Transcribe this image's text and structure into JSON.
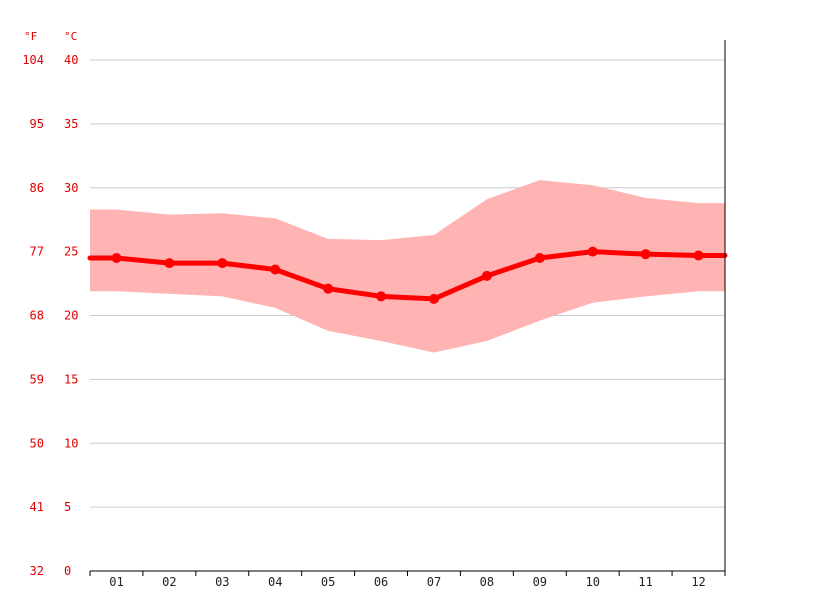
{
  "chart_data": {
    "type": "line",
    "title": "",
    "unit_left": "°F",
    "unit_right": "°C",
    "categories": [
      "01",
      "02",
      "03",
      "04",
      "05",
      "06",
      "07",
      "08",
      "09",
      "10",
      "11",
      "12"
    ],
    "y_ticks_c": [
      "0",
      "5",
      "10",
      "15",
      "20",
      "25",
      "30",
      "35",
      "40"
    ],
    "y_ticks_f": [
      "32",
      "41",
      "50",
      "59",
      "68",
      "77",
      "86",
      "95",
      "104"
    ],
    "ylim": [
      0,
      40
    ],
    "grid": true,
    "series": [
      {
        "role": "mean",
        "values": [
          24.5,
          24.1,
          24.1,
          23.6,
          22.1,
          21.5,
          21.3,
          23.1,
          24.5,
          25.0,
          24.8,
          24.7
        ]
      },
      {
        "role": "max",
        "values": [
          28.3,
          27.9,
          28.0,
          27.6,
          26.0,
          25.9,
          26.3,
          29.1,
          30.6,
          30.2,
          29.2,
          28.8
        ]
      },
      {
        "role": "min",
        "values": [
          21.9,
          21.7,
          21.5,
          20.6,
          18.8,
          18.0,
          17.1,
          18.0,
          19.6,
          21.0,
          21.5,
          21.9
        ]
      }
    ],
    "colors": {
      "line": "#ff0000",
      "band": "#ffb3b3",
      "grid": "#cccccc",
      "axis": "#000000",
      "label": "#e00000"
    }
  }
}
